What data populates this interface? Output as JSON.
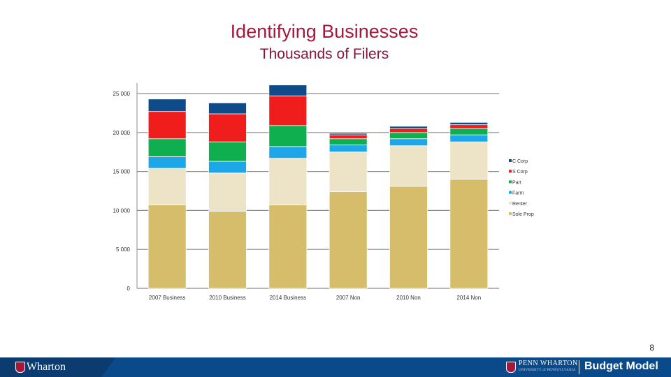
{
  "title": "Identifying Businesses",
  "subtitle": "Thousands of Filers",
  "page_number": "8",
  "footer": {
    "left_logo_text": "Wharton",
    "right_logo_text": "PENN WHARTON",
    "right_logo_subtext": "UNIVERSITY of PENNSYLVANIA",
    "brand_text": "Budget Model"
  },
  "colors": {
    "title": "#a3193e",
    "footer": "#0a4a8a"
  },
  "chart_data": {
    "type": "bar",
    "stacked": true,
    "title": "Identifying Businesses",
    "subtitle": "Thousands of Filers",
    "categories": [
      "2007 Business",
      "2010 Business",
      "2014 Business",
      "2007 Non",
      "2010 Non",
      "2014 Non"
    ],
    "y_ticks": [
      "0",
      "5 000",
      "10 000",
      "15 000",
      "20 000",
      "25 000"
    ],
    "ylim": [
      0,
      26000
    ],
    "grid": true,
    "legend_position": "right",
    "series": [
      {
        "name": "Sole Prop",
        "color": "#d5bd6b",
        "values": [
          10700,
          9900,
          10700,
          12400,
          13100,
          14000
        ]
      },
      {
        "name": "Renter",
        "color": "#ede3c6",
        "values": [
          4700,
          4900,
          6000,
          5100,
          5200,
          4800
        ]
      },
      {
        "name": "Farm",
        "color": "#1ea7e8",
        "values": [
          1500,
          1500,
          1500,
          900,
          900,
          900
        ]
      },
      {
        "name": "Part",
        "color": "#0fae4e",
        "values": [
          2300,
          2500,
          2700,
          800,
          800,
          800
        ]
      },
      {
        "name": "S Corp",
        "color": "#f01d1d",
        "values": [
          3500,
          3600,
          3800,
          500,
          500,
          500
        ]
      },
      {
        "name": "C Corp",
        "color": "#0f4b88",
        "values": [
          1600,
          1400,
          1400,
          200,
          300,
          300
        ]
      }
    ]
  }
}
